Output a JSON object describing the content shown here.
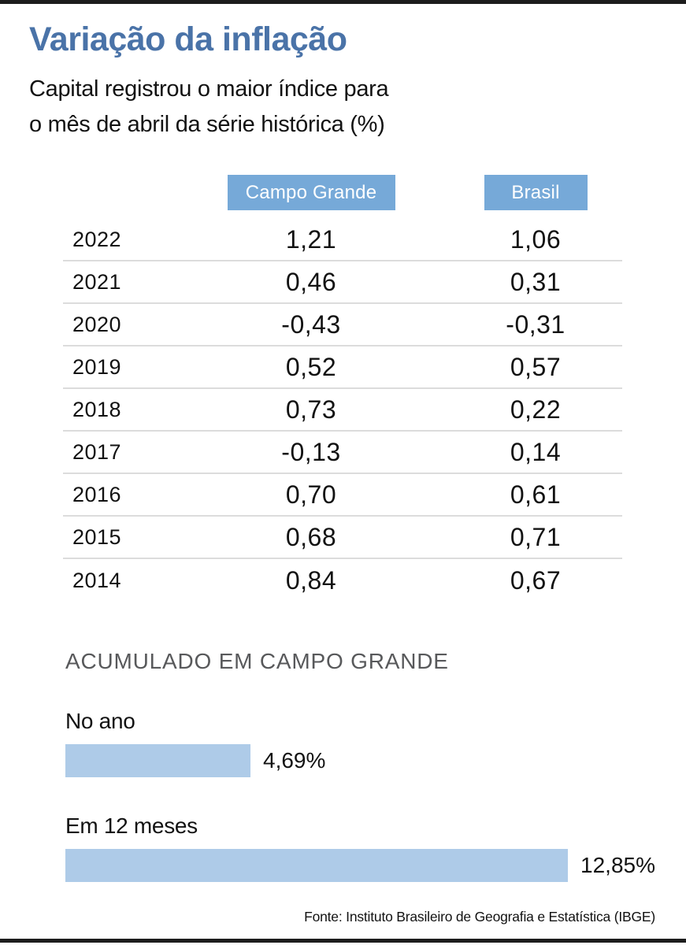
{
  "page": {
    "title": "Variação da inflação",
    "subtitle_line1": "Capital registrou o maior índice para",
    "subtitle_line2": "o mês de abril da série histórica (%)",
    "source": "Fonte: Instituto Brasileiro de Geografia e Estatística (IBGE)"
  },
  "colors": {
    "title_blue": "#4a73a8",
    "header_chip_blue": "#76a9d8",
    "bar_light_blue": "#aecbe8",
    "heading_gray": "#58595b",
    "divider_gray": "#dcdcdc",
    "frame_dark": "#1d1d1d"
  },
  "table": {
    "col1_header": "Campo Grande",
    "col2_header": "Brasil",
    "rows": [
      {
        "year": "2022",
        "campo_grande": "1,21",
        "brasil": "1,06"
      },
      {
        "year": "2021",
        "campo_grande": "0,46",
        "brasil": "0,31"
      },
      {
        "year": "2020",
        "campo_grande": "-0,43",
        "brasil": "-0,31"
      },
      {
        "year": "2019",
        "campo_grande": "0,52",
        "brasil": "0,57"
      },
      {
        "year": "2018",
        "campo_grande": "0,73",
        "brasil": "0,22"
      },
      {
        "year": "2017",
        "campo_grande": "-0,13",
        "brasil": "0,14"
      },
      {
        "year": "2016",
        "campo_grande": "0,70",
        "brasil": "0,61"
      },
      {
        "year": "2015",
        "campo_grande": "0,68",
        "brasil": "0,71"
      },
      {
        "year": "2014",
        "campo_grande": "0,84",
        "brasil": "0,67"
      }
    ]
  },
  "accumulated": {
    "heading": "ACUMULADO EM CAMPO GRANDE",
    "bars": [
      {
        "label": "No ano",
        "value": 4.69,
        "value_label": "4,69%"
      },
      {
        "label": "Em 12 meses",
        "value": 12.85,
        "value_label": "12,85%"
      }
    ]
  },
  "chart_data": [
    {
      "type": "table",
      "title": "Variação da inflação",
      "subtitle": "Capital registrou o maior índice para o mês de abril da série histórica (%)",
      "categories": [
        "2022",
        "2021",
        "2020",
        "2019",
        "2018",
        "2017",
        "2016",
        "2015",
        "2014"
      ],
      "series": [
        {
          "name": "Campo Grande",
          "values": [
            1.21,
            0.46,
            -0.43,
            0.52,
            0.73,
            -0.13,
            0.7,
            0.68,
            0.84
          ]
        },
        {
          "name": "Brasil",
          "values": [
            1.06,
            0.31,
            -0.31,
            0.57,
            0.22,
            0.14,
            0.61,
            0.71,
            0.67
          ]
        }
      ],
      "unit": "%",
      "source": "Fonte: Instituto Brasileiro de Geografia e Estatística (IBGE)"
    },
    {
      "type": "bar",
      "title": "ACUMULADO EM CAMPO GRANDE",
      "orientation": "horizontal",
      "categories": [
        "No ano",
        "Em 12 meses"
      ],
      "values": [
        4.69,
        12.85
      ],
      "unit": "%",
      "xlim": [
        0,
        12.85
      ],
      "grid": false,
      "legend": false
    }
  ]
}
